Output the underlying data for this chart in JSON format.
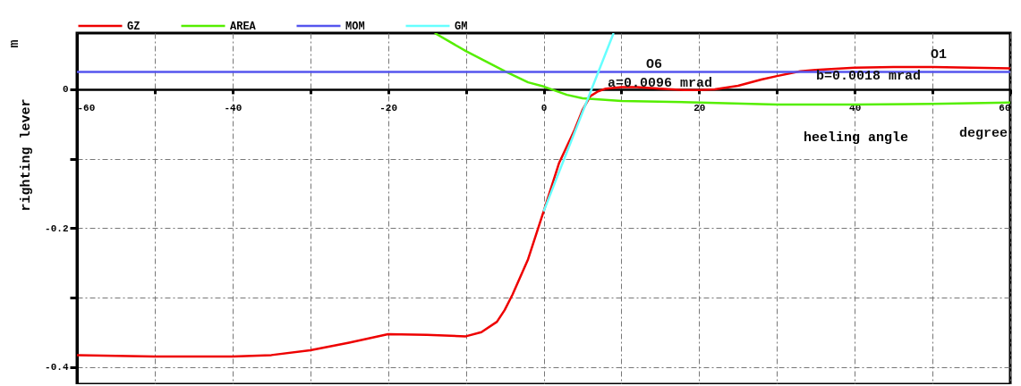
{
  "chart_data": {
    "type": "line",
    "xlabel": "heeling angle",
    "ylabel": "righting lever",
    "xlim": [
      -60,
      60
    ],
    "ylim": [
      -0.425,
      0.081
    ],
    "xticks": [
      -60,
      {
        "value": -50,
        "label": null
      },
      -40,
      {
        "value": -30,
        "label": null
      },
      -20,
      {
        "value": -10,
        "label": null
      },
      0,
      {
        "value": 10,
        "label": null
      },
      20,
      {
        "value": 30,
        "label": null
      },
      40,
      {
        "value": 50,
        "label": null
      },
      60
    ],
    "yticks": [
      -0.4,
      {
        "value": -0.3,
        "label": null
      },
      -0.2,
      {
        "value": -0.1,
        "label": null
      },
      0
    ],
    "grid": true,
    "legend": "top left",
    "marker": "none",
    "line_style": "solid",
    "annotations": [
      "m",
      "degree",
      "a=0.0096 mrad",
      "O6",
      "b=0.0018 mrad",
      "O1"
    ],
    "series": [
      {
        "name": "GZ",
        "color": "#ee0000",
        "x": [
          -60,
          -50,
          -40,
          -35,
          -30,
          -25,
          -20,
          -15,
          -10,
          -8,
          -6,
          -5,
          -4,
          -2,
          0,
          2,
          4,
          5,
          6,
          7,
          8,
          10,
          12,
          15,
          18,
          20,
          22,
          25,
          28,
          30,
          33,
          35,
          40,
          45,
          50,
          55,
          60
        ],
        "values": [
          -0.383,
          -0.385,
          -0.385,
          -0.383,
          -0.376,
          -0.365,
          -0.353,
          -0.354,
          -0.356,
          -0.35,
          -0.335,
          -0.318,
          -0.296,
          -0.245,
          -0.176,
          -0.106,
          -0.058,
          -0.03,
          -0.01,
          -0.003,
          0.001,
          0.003,
          0.003,
          0.001,
          -0.001,
          -0.001,
          0,
          0.005,
          0.014,
          0.019,
          0.026,
          0.028,
          0.031,
          0.032,
          0.032,
          0.031,
          0.03
        ]
      },
      {
        "name": "AREA",
        "color": "#55ee00",
        "x": [
          -14,
          -10,
          -5,
          -2,
          0,
          3,
          5,
          10,
          20,
          30,
          40,
          50,
          60
        ],
        "values": [
          0.081,
          0.055,
          0.026,
          0.01,
          0.004,
          -0.008,
          -0.013,
          -0.017,
          -0.019,
          -0.022,
          -0.022,
          -0.021,
          -0.019
        ]
      },
      {
        "name": "MOM",
        "color": "#5555ee",
        "x": [
          -60,
          60
        ],
        "values": [
          0.025,
          0.025
        ]
      },
      {
        "name": "GM",
        "color": "#66ffff",
        "x": [
          0,
          9
        ],
        "values": [
          -0.176,
          0.081
        ]
      }
    ]
  }
}
